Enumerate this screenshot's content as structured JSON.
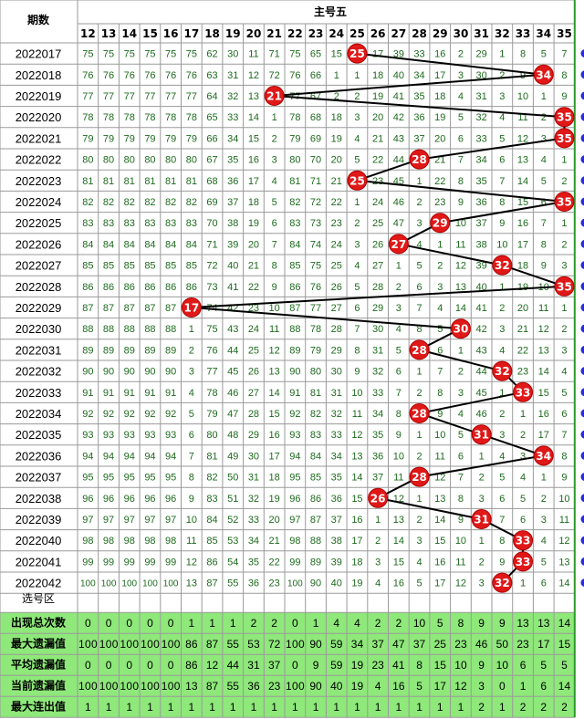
{
  "header": {
    "period_label": "期数",
    "title": "主号五"
  },
  "chart_data": {
    "type": "table",
    "columns": [
      12,
      13,
      14,
      15,
      16,
      17,
      18,
      19,
      20,
      21,
      22,
      23,
      24,
      25,
      26,
      27,
      28,
      29,
      30,
      31,
      32,
      33,
      34,
      35
    ],
    "rows": [
      {
        "period": "2022017",
        "hit": 25,
        "cells": [
          "75",
          "75",
          "75",
          "75",
          "75",
          "75",
          "62",
          "30",
          "11",
          "71",
          "75",
          "65",
          "15",
          "25",
          "17",
          "39",
          "33",
          "16",
          "2",
          "29",
          "1",
          "8",
          "5",
          "7"
        ]
      },
      {
        "period": "2022018",
        "hit": 34,
        "cells": [
          "76",
          "76",
          "76",
          "76",
          "76",
          "76",
          "63",
          "31",
          "12",
          "72",
          "76",
          "66",
          "1",
          "1",
          "18",
          "40",
          "34",
          "17",
          "3",
          "30",
          "2",
          "9",
          "34",
          "8"
        ]
      },
      {
        "period": "2022019",
        "hit": 21,
        "cells": [
          "77",
          "77",
          "77",
          "77",
          "77",
          "77",
          "64",
          "32",
          "13",
          "21",
          "77",
          "67",
          "2",
          "2",
          "19",
          "41",
          "35",
          "18",
          "4",
          "31",
          "3",
          "10",
          "1",
          "9"
        ]
      },
      {
        "period": "2022020",
        "hit": 35,
        "cells": [
          "78",
          "78",
          "78",
          "78",
          "78",
          "78",
          "65",
          "33",
          "14",
          "1",
          "78",
          "68",
          "18",
          "3",
          "20",
          "42",
          "36",
          "19",
          "5",
          "32",
          "4",
          "11",
          "2",
          "35"
        ]
      },
      {
        "period": "2022021",
        "hit": 35,
        "cells": [
          "79",
          "79",
          "79",
          "79",
          "79",
          "79",
          "66",
          "34",
          "15",
          "2",
          "79",
          "69",
          "19",
          "4",
          "21",
          "43",
          "37",
          "20",
          "6",
          "33",
          "5",
          "12",
          "3",
          "35"
        ]
      },
      {
        "period": "2022022",
        "hit": 28,
        "cells": [
          "80",
          "80",
          "80",
          "80",
          "80",
          "80",
          "67",
          "35",
          "16",
          "3",
          "80",
          "70",
          "20",
          "5",
          "22",
          "44",
          "28",
          "21",
          "7",
          "34",
          "6",
          "13",
          "4",
          "1"
        ]
      },
      {
        "period": "2022023",
        "hit": 25,
        "cells": [
          "81",
          "81",
          "81",
          "81",
          "81",
          "81",
          "68",
          "36",
          "17",
          "4",
          "81",
          "71",
          "21",
          "25",
          "23",
          "45",
          "1",
          "22",
          "8",
          "35",
          "7",
          "14",
          "5",
          "2"
        ]
      },
      {
        "period": "2022024",
        "hit": 35,
        "cells": [
          "82",
          "82",
          "82",
          "82",
          "82",
          "82",
          "69",
          "37",
          "18",
          "5",
          "82",
          "72",
          "22",
          "1",
          "24",
          "46",
          "2",
          "23",
          "9",
          "36",
          "8",
          "15",
          "6",
          "35"
        ]
      },
      {
        "period": "2022025",
        "hit": 29,
        "cells": [
          "83",
          "83",
          "83",
          "83",
          "83",
          "83",
          "70",
          "38",
          "19",
          "6",
          "83",
          "73",
          "23",
          "2",
          "25",
          "47",
          "3",
          "29",
          "10",
          "37",
          "9",
          "16",
          "7",
          "1"
        ]
      },
      {
        "period": "2022026",
        "hit": 27,
        "cells": [
          "84",
          "84",
          "84",
          "84",
          "84",
          "84",
          "71",
          "39",
          "20",
          "7",
          "84",
          "74",
          "24",
          "3",
          "26",
          "27",
          "4",
          "1",
          "11",
          "38",
          "10",
          "17",
          "8",
          "2"
        ]
      },
      {
        "period": "2022027",
        "hit": 32,
        "cells": [
          "85",
          "85",
          "85",
          "85",
          "85",
          "85",
          "72",
          "40",
          "21",
          "8",
          "85",
          "75",
          "25",
          "4",
          "27",
          "1",
          "5",
          "2",
          "12",
          "39",
          "32",
          "18",
          "9",
          "3"
        ]
      },
      {
        "period": "2022028",
        "hit": 35,
        "cells": [
          "86",
          "86",
          "86",
          "86",
          "86",
          "86",
          "73",
          "41",
          "22",
          "9",
          "86",
          "76",
          "26",
          "5",
          "28",
          "2",
          "6",
          "3",
          "13",
          "40",
          "1",
          "19",
          "10",
          "35"
        ]
      },
      {
        "period": "2022029",
        "hit": 17,
        "cells": [
          "87",
          "87",
          "87",
          "87",
          "87",
          "17",
          "74",
          "42",
          "23",
          "10",
          "87",
          "77",
          "27",
          "6",
          "29",
          "3",
          "7",
          "4",
          "14",
          "41",
          "2",
          "20",
          "11",
          "1"
        ]
      },
      {
        "period": "2022030",
        "hit": 30,
        "cells": [
          "88",
          "88",
          "88",
          "88",
          "88",
          "1",
          "75",
          "43",
          "24",
          "11",
          "88",
          "78",
          "28",
          "7",
          "30",
          "4",
          "8",
          "5",
          "30",
          "42",
          "3",
          "21",
          "12",
          "2"
        ]
      },
      {
        "period": "2022031",
        "hit": 28,
        "cells": [
          "89",
          "89",
          "89",
          "89",
          "89",
          "2",
          "76",
          "44",
          "25",
          "12",
          "89",
          "79",
          "29",
          "8",
          "31",
          "5",
          "28",
          "6",
          "1",
          "43",
          "4",
          "22",
          "13",
          "3"
        ]
      },
      {
        "period": "2022032",
        "hit": 32,
        "cells": [
          "90",
          "90",
          "90",
          "90",
          "90",
          "3",
          "77",
          "45",
          "26",
          "13",
          "90",
          "80",
          "30",
          "9",
          "32",
          "6",
          "1",
          "7",
          "2",
          "44",
          "32",
          "23",
          "14",
          "4"
        ]
      },
      {
        "period": "2022033",
        "hit": 33,
        "cells": [
          "91",
          "91",
          "91",
          "91",
          "91",
          "4",
          "78",
          "46",
          "27",
          "14",
          "91",
          "81",
          "31",
          "10",
          "33",
          "7",
          "2",
          "8",
          "3",
          "45",
          "1",
          "33",
          "15",
          "5"
        ]
      },
      {
        "period": "2022034",
        "hit": 28,
        "cells": [
          "92",
          "92",
          "92",
          "92",
          "92",
          "5",
          "79",
          "47",
          "28",
          "15",
          "92",
          "82",
          "32",
          "11",
          "34",
          "8",
          "28",
          "9",
          "4",
          "46",
          "2",
          "1",
          "16",
          "6"
        ]
      },
      {
        "period": "2022035",
        "hit": 31,
        "cells": [
          "93",
          "93",
          "93",
          "93",
          "93",
          "6",
          "80",
          "48",
          "29",
          "16",
          "93",
          "83",
          "33",
          "12",
          "35",
          "9",
          "1",
          "10",
          "5",
          "31",
          "3",
          "2",
          "17",
          "7"
        ]
      },
      {
        "period": "2022036",
        "hit": 34,
        "cells": [
          "94",
          "94",
          "94",
          "94",
          "94",
          "7",
          "81",
          "49",
          "30",
          "17",
          "94",
          "84",
          "34",
          "13",
          "36",
          "10",
          "2",
          "11",
          "6",
          "1",
          "4",
          "3",
          "34",
          "8"
        ]
      },
      {
        "period": "2022037",
        "hit": 28,
        "cells": [
          "95",
          "95",
          "95",
          "95",
          "95",
          "8",
          "82",
          "50",
          "31",
          "18",
          "95",
          "85",
          "35",
          "14",
          "37",
          "11",
          "28",
          "12",
          "7",
          "2",
          "5",
          "4",
          "1",
          "9"
        ]
      },
      {
        "period": "2022038",
        "hit": 26,
        "cells": [
          "96",
          "96",
          "96",
          "96",
          "96",
          "9",
          "83",
          "51",
          "32",
          "19",
          "96",
          "86",
          "36",
          "15",
          "26",
          "12",
          "1",
          "13",
          "8",
          "3",
          "6",
          "5",
          "2",
          "10"
        ]
      },
      {
        "period": "2022039",
        "hit": 31,
        "cells": [
          "97",
          "97",
          "97",
          "97",
          "97",
          "10",
          "84",
          "52",
          "33",
          "20",
          "97",
          "87",
          "37",
          "16",
          "1",
          "13",
          "2",
          "14",
          "9",
          "31",
          "7",
          "6",
          "3",
          "11"
        ]
      },
      {
        "period": "2022040",
        "hit": 33,
        "cells": [
          "98",
          "98",
          "98",
          "98",
          "98",
          "11",
          "85",
          "53",
          "34",
          "21",
          "98",
          "88",
          "38",
          "17",
          "2",
          "14",
          "3",
          "15",
          "10",
          "1",
          "8",
          "33",
          "4",
          "12"
        ]
      },
      {
        "period": "2022041",
        "hit": 33,
        "cells": [
          "99",
          "99",
          "99",
          "99",
          "99",
          "12",
          "86",
          "54",
          "35",
          "22",
          "99",
          "89",
          "39",
          "18",
          "3",
          "15",
          "4",
          "16",
          "11",
          "2",
          "9",
          "33",
          "5",
          "13"
        ]
      },
      {
        "period": "2022042",
        "hit": 32,
        "cells": [
          "100",
          "100",
          "100",
          "100",
          "100",
          "13",
          "87",
          "55",
          "36",
          "23",
          "100",
          "90",
          "40",
          "19",
          "4",
          "16",
          "5",
          "17",
          "12",
          "3",
          "32",
          "1",
          "6",
          "14"
        ]
      }
    ],
    "select_zone_label": "选号区",
    "stats": [
      {
        "label": "出现总次数",
        "values": [
          "0",
          "0",
          "0",
          "0",
          "0",
          "1",
          "1",
          "1",
          "2",
          "2",
          "0",
          "1",
          "4",
          "4",
          "2",
          "2",
          "10",
          "5",
          "8",
          "9",
          "9",
          "13",
          "13",
          "14"
        ]
      },
      {
        "label": "最大遗漏值",
        "values": [
          "100",
          "100",
          "100",
          "100",
          "100",
          "86",
          "87",
          "55",
          "53",
          "72",
          "100",
          "90",
          "59",
          "34",
          "37",
          "47",
          "37",
          "25",
          "23",
          "46",
          "50",
          "23",
          "17",
          "15"
        ]
      },
      {
        "label": "平均遗漏值",
        "values": [
          "0",
          "0",
          "0",
          "0",
          "0",
          "86",
          "12",
          "44",
          "31",
          "37",
          "0",
          "9",
          "59",
          "19",
          "23",
          "41",
          "8",
          "15",
          "10",
          "9",
          "10",
          "6",
          "5",
          "5"
        ]
      },
      {
        "label": "当前遗漏值",
        "values": [
          "100",
          "100",
          "100",
          "100",
          "100",
          "13",
          "87",
          "55",
          "36",
          "23",
          "100",
          "90",
          "40",
          "19",
          "4",
          "16",
          "5",
          "17",
          "12",
          "3",
          "0",
          "1",
          "6",
          "14"
        ]
      },
      {
        "label": "最大连出值",
        "values": [
          "1",
          "1",
          "1",
          "1",
          "1",
          "1",
          "1",
          "1",
          "1",
          "1",
          "1",
          "1",
          "1",
          "1",
          "1",
          "1",
          "1",
          "1",
          "1",
          "2",
          "1",
          "2",
          "2",
          "2"
        ]
      }
    ]
  },
  "colors": {
    "ball": "#e01818",
    "line": "#000000",
    "cell_text": "#1d6a1d",
    "stat_bg": "#8ee87a",
    "edge_dot": "#2a2ad8",
    "grid": "#c8c8c8"
  }
}
